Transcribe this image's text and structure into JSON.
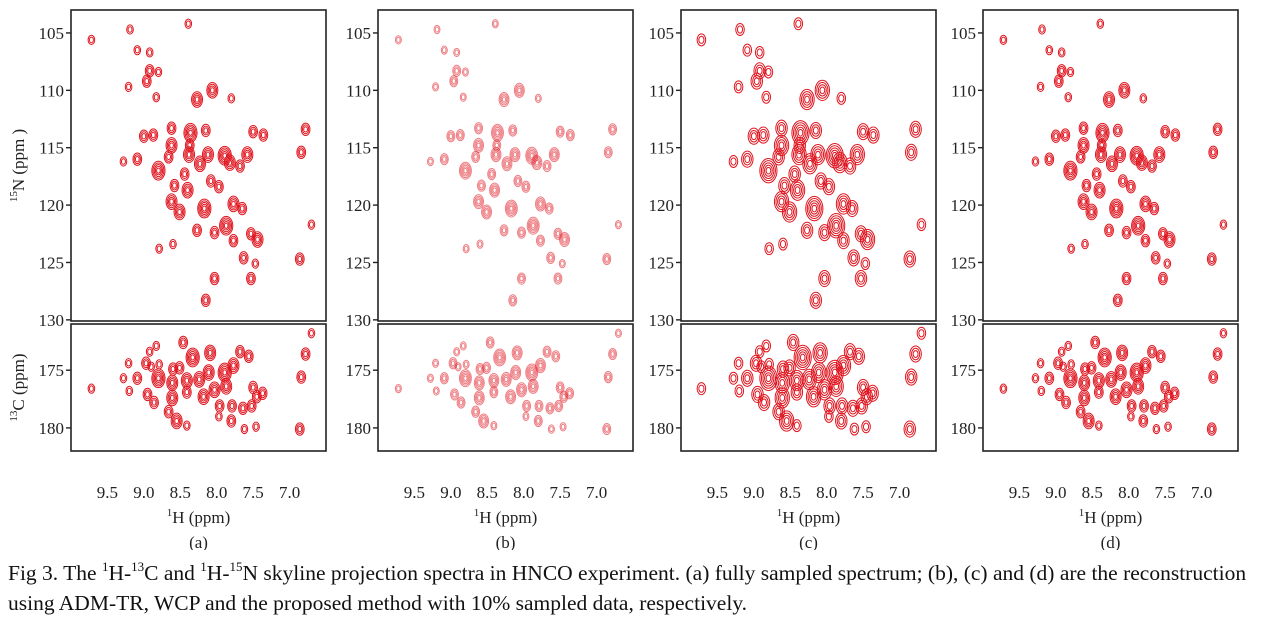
{
  "caption": {
    "p1": "Fig 3. The ",
    "sup1": "1",
    "p2": "H-",
    "sup2": "13",
    "p3": "C and ",
    "sup3": "1",
    "p4": "H-",
    "sup4": "15",
    "p5": "N skyline projection spectra in HNCO experiment. (a) fully sampled spectrum; (b), (c) and (d) are the reconstruction using ADM-TR, WCP and the proposed method with 10% sampled data, respectively."
  },
  "chart_data": {
    "type": "scatter",
    "title": "",
    "peak_color": "#e0141e",
    "x_axis": {
      "label_sup": "1",
      "label": "H  (ppm)",
      "ticks": [
        "9.5",
        "9.0",
        "8.5",
        "8.0",
        "7.5",
        "7.0"
      ],
      "tick_values": [
        9.5,
        9.0,
        8.5,
        8.0,
        7.5,
        7.0
      ],
      "range": [
        10.0,
        6.5
      ],
      "reversed": true
    },
    "n_axis": {
      "label_sup": "15",
      "label": "N (ppm )",
      "ticks": [
        "105",
        "110",
        "115",
        "120",
        "125",
        "130"
      ],
      "tick_values": [
        105,
        110,
        115,
        120,
        125,
        130
      ],
      "range": [
        103,
        130.1
      ]
    },
    "c_axis": {
      "label_sup": "13",
      "label": "C (ppm)",
      "ticks": [
        "175",
        "180"
      ],
      "tick_values": [
        175,
        180
      ],
      "range": [
        171,
        182
      ]
    },
    "panels": [
      {
        "label": "(a)",
        "style": "full",
        "show_ylabels": true
      },
      {
        "label": "(b)",
        "style": "faint",
        "show_ylabels": false
      },
      {
        "label": "(c)",
        "style": "bold",
        "show_ylabels": false
      },
      {
        "label": "(d)",
        "style": "full",
        "show_ylabels": false
      }
    ],
    "n_peaks": [
      [
        9.72,
        105.6,
        1
      ],
      [
        9.19,
        104.7,
        1
      ],
      [
        8.39,
        104.2,
        1
      ],
      [
        9.09,
        106.5,
        1
      ],
      [
        8.92,
        106.7,
        1
      ],
      [
        8.92,
        108.3,
        2
      ],
      [
        8.96,
        109.2,
        2
      ],
      [
        8.8,
        108.4,
        1
      ],
      [
        9.21,
        109.7,
        1
      ],
      [
        8.83,
        110.6,
        1
      ],
      [
        8.27,
        110.8,
        3
      ],
      [
        8.06,
        110.0,
        3
      ],
      [
        7.8,
        110.7,
        1
      ],
      [
        8.62,
        113.3,
        2
      ],
      [
        8.36,
        113.7,
        4
      ],
      [
        8.15,
        113.5,
        2
      ],
      [
        7.5,
        113.6,
        2
      ],
      [
        7.36,
        113.9,
        2
      ],
      [
        6.78,
        113.4,
        2
      ],
      [
        9.0,
        114.0,
        2
      ],
      [
        8.87,
        113.9,
        2
      ],
      [
        8.62,
        114.8,
        3
      ],
      [
        8.38,
        115.6,
        3
      ],
      [
        8.37,
        114.8,
        2
      ],
      [
        8.12,
        115.6,
        3
      ],
      [
        7.89,
        115.7,
        4
      ],
      [
        7.82,
        116.3,
        3
      ],
      [
        7.58,
        115.6,
        3
      ],
      [
        6.84,
        115.4,
        2
      ],
      [
        9.28,
        116.2,
        1
      ],
      [
        9.09,
        116.0,
        2
      ],
      [
        8.8,
        117.0,
        4
      ],
      [
        8.66,
        115.8,
        2
      ],
      [
        8.23,
        116.4,
        3
      ],
      [
        7.68,
        116.6,
        2
      ],
      [
        8.44,
        117.3,
        2
      ],
      [
        8.08,
        117.9,
        2
      ],
      [
        7.97,
        118.4,
        2
      ],
      [
        8.58,
        118.3,
        2
      ],
      [
        8.4,
        118.7,
        3
      ],
      [
        8.62,
        119.7,
        3
      ],
      [
        8.51,
        120.6,
        3
      ],
      [
        8.17,
        120.3,
        4
      ],
      [
        7.77,
        119.9,
        3
      ],
      [
        7.65,
        120.3,
        2
      ],
      [
        8.27,
        122.2,
        2
      ],
      [
        8.03,
        122.4,
        2
      ],
      [
        7.87,
        121.8,
        4
      ],
      [
        7.77,
        123.1,
        2
      ],
      [
        7.53,
        122.5,
        2
      ],
      [
        7.44,
        123.0,
        3
      ],
      [
        8.79,
        123.8,
        1
      ],
      [
        8.6,
        123.4,
        1
      ],
      [
        7.63,
        124.6,
        2
      ],
      [
        7.47,
        125.1,
        1
      ],
      [
        6.86,
        124.7,
        2
      ],
      [
        6.7,
        121.7,
        1
      ],
      [
        8.03,
        126.4,
        2
      ],
      [
        7.53,
        126.4,
        2
      ],
      [
        8.15,
        128.3,
        2
      ]
    ],
    "c_peaks": [
      [
        9.72,
        176.6,
        1
      ],
      [
        9.21,
        174.4,
        1
      ],
      [
        9.28,
        175.7,
        1
      ],
      [
        9.2,
        176.8,
        1
      ],
      [
        9.09,
        175.7,
        2
      ],
      [
        8.97,
        174.4,
        2
      ],
      [
        8.9,
        174.7,
        1
      ],
      [
        8.83,
        172.9,
        1
      ],
      [
        8.92,
        173.4,
        1
      ],
      [
        8.79,
        174.5,
        1
      ],
      [
        8.95,
        177.1,
        2
      ],
      [
        8.8,
        175.7,
        4
      ],
      [
        8.86,
        177.8,
        2
      ],
      [
        8.66,
        178.6,
        2
      ],
      [
        8.61,
        176.1,
        3
      ],
      [
        8.61,
        177.4,
        3
      ],
      [
        8.6,
        174.9,
        2
      ],
      [
        8.51,
        174.8,
        2
      ],
      [
        8.46,
        172.6,
        2
      ],
      [
        8.55,
        179.4,
        3
      ],
      [
        8.41,
        176.9,
        2
      ],
      [
        8.41,
        175.9,
        3
      ],
      [
        8.33,
        173.9,
        4
      ],
      [
        8.24,
        175.8,
        3
      ],
      [
        8.18,
        177.3,
        3
      ],
      [
        8.11,
        175.2,
        3
      ],
      [
        8.09,
        173.5,
        3
      ],
      [
        8.03,
        176.7,
        3
      ],
      [
        7.96,
        178.1,
        2
      ],
      [
        7.89,
        175.2,
        4
      ],
      [
        7.87,
        176.4,
        3
      ],
      [
        7.77,
        174.6,
        3
      ],
      [
        7.68,
        173.4,
        2
      ],
      [
        7.56,
        173.8,
        2
      ],
      [
        7.79,
        178.1,
        2
      ],
      [
        7.64,
        178.3,
        2
      ],
      [
        7.52,
        178.1,
        2
      ],
      [
        7.5,
        176.5,
        2
      ],
      [
        7.45,
        177.3,
        2
      ],
      [
        7.37,
        177.0,
        2
      ],
      [
        7.8,
        179.4,
        2
      ],
      [
        7.62,
        180.1,
        1
      ],
      [
        7.46,
        179.9,
        1
      ],
      [
        8.41,
        179.8,
        1
      ],
      [
        6.86,
        180.1,
        2
      ],
      [
        6.84,
        175.6,
        2
      ],
      [
        6.78,
        173.6,
        2
      ],
      [
        6.7,
        171.8,
        1
      ],
      [
        7.97,
        179.0,
        1
      ]
    ]
  }
}
